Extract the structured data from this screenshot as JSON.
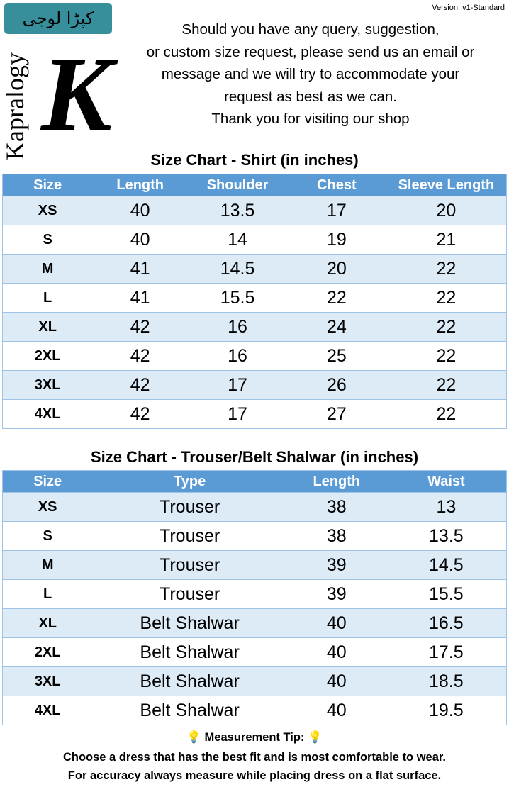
{
  "version": "Version: v1-Standard",
  "logo": {
    "urdu": "کپڑا لوجی",
    "brand": "Kapralogy",
    "letter": "K"
  },
  "message": [
    "Should you have any query, suggestion,",
    "or custom size request, please send us an email or",
    "message and we will try to accommodate your",
    "request as best as we can.",
    "Thank you for visiting our shop"
  ],
  "shirt": {
    "title": "Size Chart - Shirt (in inches)",
    "headers": [
      "Size",
      "Length",
      "Shoulder",
      "Chest",
      "Sleeve Length"
    ],
    "rows": [
      [
        "XS",
        "40",
        "13.5",
        "17",
        "20"
      ],
      [
        "S",
        "40",
        "14",
        "19",
        "21"
      ],
      [
        "M",
        "41",
        "14.5",
        "20",
        "22"
      ],
      [
        "L",
        "41",
        "15.5",
        "22",
        "22"
      ],
      [
        "XL",
        "42",
        "16",
        "24",
        "22"
      ],
      [
        "2XL",
        "42",
        "16",
        "25",
        "22"
      ],
      [
        "3XL",
        "42",
        "17",
        "26",
        "22"
      ],
      [
        "4XL",
        "42",
        "17",
        "27",
        "22"
      ]
    ]
  },
  "trouser": {
    "title": "Size Chart - Trouser/Belt Shalwar (in inches)",
    "headers": [
      "Size",
      "Type",
      "Length",
      "Waist"
    ],
    "rows": [
      [
        "XS",
        "Trouser",
        "38",
        "13"
      ],
      [
        "S",
        "Trouser",
        "38",
        "13.5"
      ],
      [
        "M",
        "Trouser",
        "39",
        "14.5"
      ],
      [
        "L",
        "Trouser",
        "39",
        "15.5"
      ],
      [
        "XL",
        "Belt Shalwar",
        "40",
        "16.5"
      ],
      [
        "2XL",
        "Belt Shalwar",
        "40",
        "17.5"
      ],
      [
        "3XL",
        "Belt Shalwar",
        "40",
        "18.5"
      ],
      [
        "4XL",
        "Belt Shalwar",
        "40",
        "19.5"
      ]
    ]
  },
  "tip": {
    "heading": "Measurement Tip:",
    "icon": "lightbulb-icon",
    "lines": [
      "Choose a dress that has the best fit and is most comfortable to wear.",
      "For accuracy always measure while placing dress on a flat surface."
    ]
  },
  "colors": {
    "header": "#5b9bd5",
    "stripe": "#ddebf7",
    "logo": "#368f9b"
  }
}
